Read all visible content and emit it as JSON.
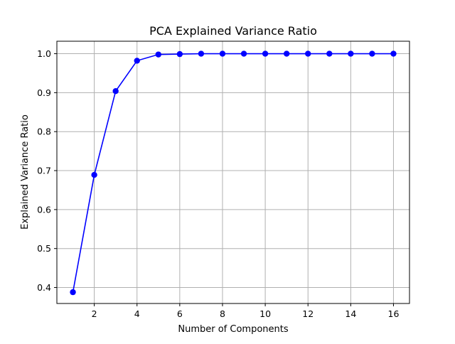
{
  "chart_data": {
    "type": "line",
    "title": "PCA Explained Variance Ratio",
    "xlabel": "Number of Components",
    "ylabel": "Explained Variance Ratio",
    "xlim": [
      0.25,
      16.75
    ],
    "ylim": [
      0.359,
      1.032
    ],
    "grid": true,
    "x_ticks": [
      2,
      4,
      6,
      8,
      10,
      12,
      14,
      16
    ],
    "x_tick_labels": [
      "2",
      "4",
      "6",
      "8",
      "10",
      "12",
      "14",
      "16"
    ],
    "y_ticks": [
      0.4,
      0.5,
      0.6,
      0.7,
      0.8,
      0.9,
      1.0
    ],
    "y_tick_labels": [
      "0.4",
      "0.5",
      "0.6",
      "0.7",
      "0.8",
      "0.9",
      "1.0"
    ],
    "series": [
      {
        "color": "#0000ff",
        "marker": "circle",
        "x": [
          1,
          2,
          3,
          4,
          5,
          6,
          7,
          8,
          9,
          10,
          11,
          12,
          13,
          14,
          15,
          16
        ],
        "y": [
          0.388,
          0.689,
          0.904,
          0.982,
          0.998,
          0.999,
          1.0,
          1.0,
          1.0,
          1.0,
          1.0,
          1.0,
          1.0,
          1.0,
          1.0,
          1.0
        ]
      }
    ]
  }
}
